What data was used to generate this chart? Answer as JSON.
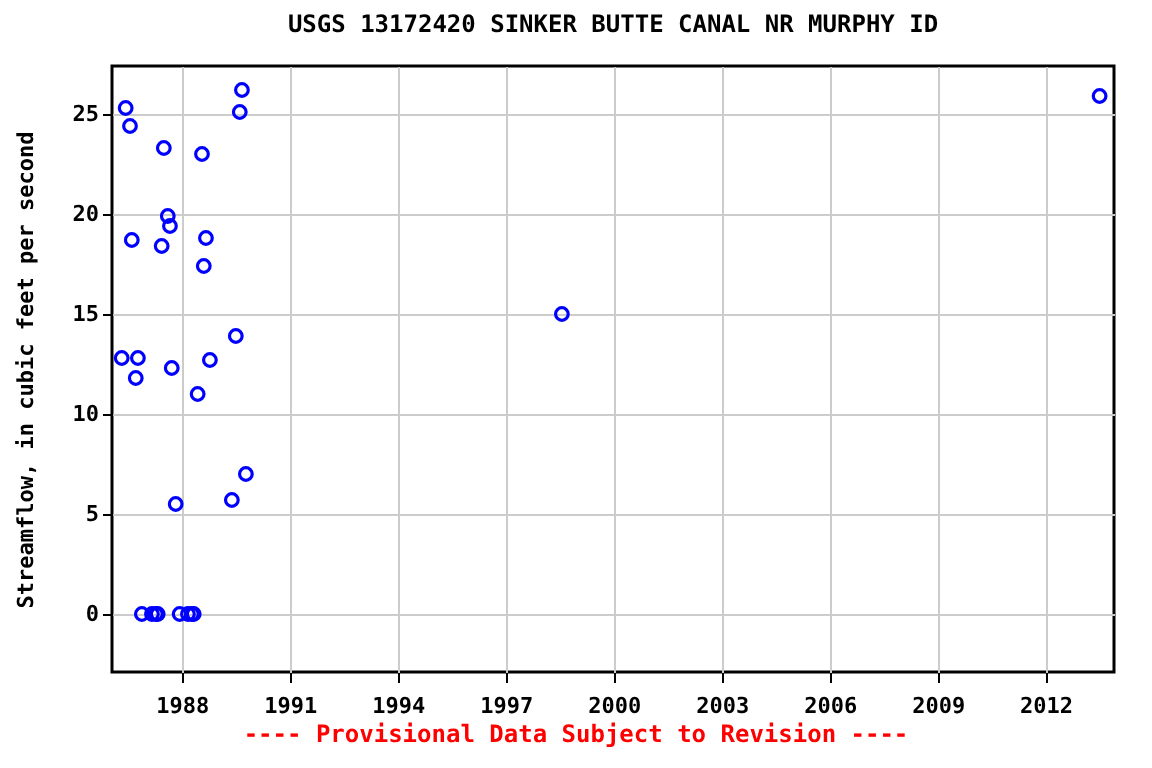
{
  "chart_data": {
    "type": "scatter",
    "title": "USGS 13172420 SINKER BUTTE CANAL NR MURPHY ID",
    "ylabel": "Streamflow, in cubic feet per second",
    "annotations": [
      "---- Provisional Data Subject to Revision ----"
    ],
    "x": [
      1986.44,
      1986.56,
      1986.61,
      1986.33,
      1986.78,
      1986.72,
      1986.89,
      1987.17,
      1987.28,
      1987.33,
      1987.5,
      1987.44,
      1987.61,
      1987.67,
      1987.72,
      1987.83,
      1987.94,
      1988.17,
      1988.28,
      1988.33,
      1988.56,
      1988.67,
      1988.61,
      1988.44,
      1988.78,
      1989.5,
      1989.39,
      1989.61,
      1989.67,
      1989.78,
      1998.56,
      2013.5
    ],
    "series": [
      {
        "color": "#0000ff",
        "values": [
          25.3,
          24.4,
          18.7,
          12.8,
          12.8,
          11.8,
          0,
          0,
          0,
          0,
          23.3,
          18.4,
          19.9,
          19.4,
          12.3,
          5.5,
          0,
          0,
          0,
          0,
          23.0,
          18.8,
          17.4,
          11.0,
          12.7,
          13.9,
          5.7,
          25.1,
          26.2,
          7.0,
          15.0,
          25.9
        ]
      }
    ],
    "xlim": [
      1986.06,
      2013.9
    ],
    "xticks": [
      1988,
      1991,
      1994,
      1997,
      2000,
      2003,
      2006,
      2009,
      2012
    ],
    "ylim": [
      -2.9,
      27.4
    ],
    "yticks": [
      0,
      5,
      10,
      15,
      20,
      25
    ],
    "grid": true,
    "legend": false,
    "marker": "circle"
  }
}
